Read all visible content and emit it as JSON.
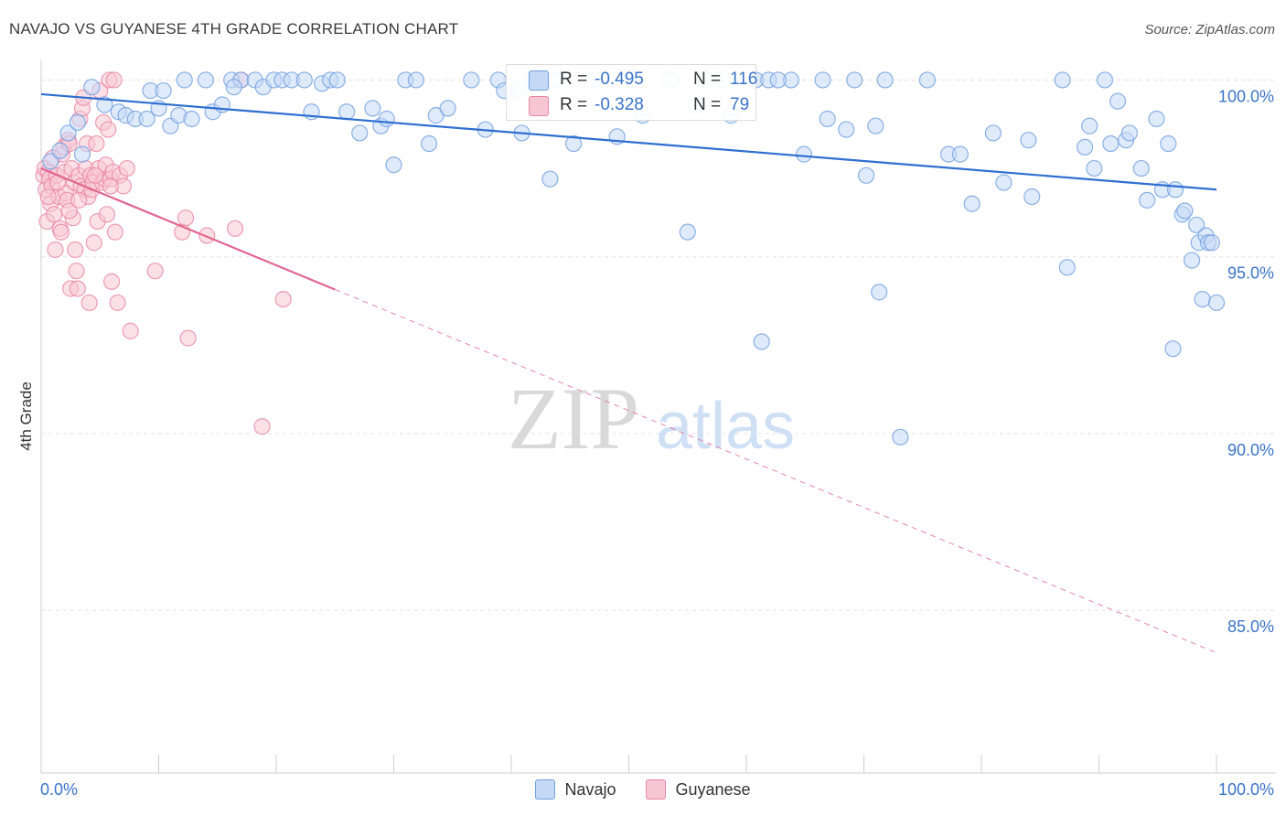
{
  "title": "NAVAJO VS GUYANESE 4TH GRADE CORRELATION CHART",
  "source": "Source: ZipAtlas.com",
  "watermark": {
    "zip": "ZIP",
    "atlas": "atlas"
  },
  "stats": {
    "navajo": {
      "r_label": "R =",
      "r_value": "-0.495",
      "n_label": "N =",
      "n_value": "116"
    },
    "guyanese": {
      "r_label": "R =",
      "r_value": "-0.328",
      "n_label": "N =",
      "n_value": "79"
    }
  },
  "colors": {
    "navajo": "#6f9fe0",
    "navajo_fill": "#c5d8f5",
    "navajo_line": "#2f6fd0",
    "guyanese": "#ea86a4",
    "guyanese_fill": "#f7c6d5",
    "guyanese_line": "#e0688f",
    "value_text": "#3b74c9",
    "grid": "#e3e3e3"
  },
  "chart_data": {
    "type": "scatter",
    "title": "NAVAJO VS GUYANESE 4TH GRADE CORRELATION CHART",
    "xlabel": "",
    "ylabel": "4th Grade",
    "xlim": [
      0,
      100
    ],
    "ylim": [
      80.4,
      100.4
    ],
    "x_tick_labels": [
      "0.0%",
      "100.0%"
    ],
    "y_ticks": [
      100,
      95,
      90,
      85
    ],
    "y_tick_labels": [
      "100.0%",
      "95.0%",
      "90.0%",
      "85.0%"
    ],
    "grid": true,
    "legend": "bottom-center",
    "series": [
      {
        "name": "Navajo",
        "trend": {
          "x": [
            0,
            100
          ],
          "y": [
            99.6,
            96.9
          ],
          "style": "solid"
        },
        "points": [
          [
            0.8,
            97.7
          ],
          [
            1.6,
            98.0
          ],
          [
            2.3,
            98.5
          ],
          [
            3.1,
            98.8
          ],
          [
            3.5,
            97.9
          ],
          [
            4.3,
            99.8
          ],
          [
            5.4,
            99.3
          ],
          [
            6.6,
            99.1
          ],
          [
            7.2,
            99.0
          ],
          [
            8.0,
            98.9
          ],
          [
            9.0,
            98.9
          ],
          [
            9.3,
            99.7
          ],
          [
            10.0,
            99.2
          ],
          [
            10.4,
            99.7
          ],
          [
            11.0,
            98.7
          ],
          [
            11.7,
            99.0
          ],
          [
            12.2,
            100.0
          ],
          [
            12.8,
            98.9
          ],
          [
            14.0,
            100.0
          ],
          [
            14.6,
            99.1
          ],
          [
            15.4,
            99.3
          ],
          [
            16.2,
            100.0
          ],
          [
            17.0,
            100.0
          ],
          [
            18.2,
            100.0
          ],
          [
            18.9,
            99.8
          ],
          [
            19.8,
            100.0
          ],
          [
            20.5,
            100.0
          ],
          [
            21.3,
            100.0
          ],
          [
            22.4,
            100.0
          ],
          [
            23.0,
            99.1
          ],
          [
            23.9,
            99.9
          ],
          [
            24.6,
            100.0
          ],
          [
            25.2,
            100.0
          ],
          [
            26.0,
            99.1
          ],
          [
            27.1,
            98.5
          ],
          [
            28.2,
            99.2
          ],
          [
            28.9,
            98.7
          ],
          [
            29.4,
            98.9
          ],
          [
            30.0,
            97.6
          ],
          [
            31.0,
            100.0
          ],
          [
            31.9,
            100.0
          ],
          [
            33.0,
            98.2
          ],
          [
            33.6,
            99.0
          ],
          [
            34.6,
            99.2
          ],
          [
            36.6,
            100.0
          ],
          [
            37.8,
            98.6
          ],
          [
            38.9,
            100.0
          ],
          [
            39.4,
            99.7
          ],
          [
            40.6,
            99.7
          ],
          [
            40.9,
            98.5
          ],
          [
            41.8,
            100.0
          ],
          [
            42.0,
            100.0
          ],
          [
            43.3,
            97.2
          ],
          [
            43.9,
            100.0
          ],
          [
            45.3,
            98.2
          ],
          [
            47.0,
            100.0
          ],
          [
            49.0,
            98.4
          ],
          [
            50.3,
            100.0
          ],
          [
            51.2,
            99.0
          ],
          [
            53.5,
            100.0
          ],
          [
            55.0,
            95.7
          ],
          [
            55.7,
            99.3
          ],
          [
            56.6,
            100.0
          ],
          [
            58.0,
            100.0
          ],
          [
            58.7,
            99.0
          ],
          [
            60.8,
            100.0
          ],
          [
            61.3,
            92.6
          ],
          [
            61.9,
            100.0
          ],
          [
            63.8,
            100.0
          ],
          [
            64.9,
            97.9
          ],
          [
            66.5,
            100.0
          ],
          [
            66.9,
            98.9
          ],
          [
            68.5,
            98.6
          ],
          [
            69.2,
            100.0
          ],
          [
            70.2,
            97.3
          ],
          [
            71.0,
            98.7
          ],
          [
            71.3,
            94.0
          ],
          [
            71.8,
            100.0
          ],
          [
            73.1,
            89.9
          ],
          [
            75.4,
            100.0
          ],
          [
            77.2,
            97.9
          ],
          [
            78.2,
            97.9
          ],
          [
            79.2,
            96.5
          ],
          [
            81.0,
            98.5
          ],
          [
            81.9,
            97.1
          ],
          [
            84.0,
            98.3
          ],
          [
            84.3,
            96.7
          ],
          [
            86.9,
            100.0
          ],
          [
            87.3,
            94.7
          ],
          [
            88.8,
            98.1
          ],
          [
            89.2,
            98.7
          ],
          [
            89.6,
            97.5
          ],
          [
            90.5,
            100.0
          ],
          [
            91.0,
            98.2
          ],
          [
            91.6,
            99.4
          ],
          [
            92.3,
            98.3
          ],
          [
            92.6,
            98.5
          ],
          [
            93.6,
            97.5
          ],
          [
            94.1,
            96.6
          ],
          [
            94.9,
            98.9
          ],
          [
            95.4,
            96.9
          ],
          [
            95.9,
            98.2
          ],
          [
            96.3,
            92.4
          ],
          [
            96.5,
            96.9
          ],
          [
            97.1,
            96.2
          ],
          [
            97.3,
            96.3
          ],
          [
            97.9,
            94.9
          ],
          [
            98.3,
            95.9
          ],
          [
            98.5,
            95.4
          ],
          [
            98.8,
            93.8
          ],
          [
            99.1,
            95.6
          ],
          [
            99.3,
            95.4
          ],
          [
            99.6,
            95.4
          ],
          [
            100.0,
            93.7
          ],
          [
            62.7,
            100.0
          ],
          [
            16.4,
            99.8
          ]
        ]
      },
      {
        "name": "Guyanese",
        "trend": {
          "x": [
            0,
            100
          ],
          "y": [
            97.5,
            83.8
          ],
          "solid_until": 25,
          "style": "solid-then-dashed"
        },
        "points": [
          [
            0.2,
            97.3
          ],
          [
            0.3,
            97.5
          ],
          [
            0.4,
            96.9
          ],
          [
            0.5,
            96.0
          ],
          [
            0.6,
            97.4
          ],
          [
            0.7,
            97.2
          ],
          [
            0.8,
            96.5
          ],
          [
            0.9,
            97.0
          ],
          [
            1.0,
            97.8
          ],
          [
            1.1,
            96.2
          ],
          [
            1.2,
            95.2
          ],
          [
            1.3,
            97.3
          ],
          [
            1.5,
            96.7
          ],
          [
            1.6,
            95.8
          ],
          [
            1.7,
            95.7
          ],
          [
            1.8,
            97.9
          ],
          [
            1.9,
            98.1
          ],
          [
            2.0,
            97.4
          ],
          [
            2.1,
            96.8
          ],
          [
            2.2,
            96.6
          ],
          [
            2.3,
            98.3
          ],
          [
            2.4,
            98.2
          ],
          [
            2.5,
            94.1
          ],
          [
            2.6,
            97.5
          ],
          [
            2.7,
            96.1
          ],
          [
            2.8,
            97.1
          ],
          [
            2.9,
            95.2
          ],
          [
            3.0,
            94.6
          ],
          [
            3.1,
            94.1
          ],
          [
            3.2,
            97.3
          ],
          [
            3.3,
            98.9
          ],
          [
            3.4,
            97.0
          ],
          [
            3.5,
            99.2
          ],
          [
            3.6,
            99.5
          ],
          [
            3.7,
            96.9
          ],
          [
            3.8,
            97.5
          ],
          [
            3.9,
            98.2
          ],
          [
            4.0,
            96.7
          ],
          [
            4.1,
            93.7
          ],
          [
            4.2,
            97.3
          ],
          [
            4.3,
            96.9
          ],
          [
            4.4,
            97.1
          ],
          [
            4.5,
            95.4
          ],
          [
            4.7,
            98.2
          ],
          [
            4.8,
            96.0
          ],
          [
            4.9,
            97.5
          ],
          [
            5.0,
            99.7
          ],
          [
            5.2,
            97.1
          ],
          [
            5.3,
            98.8
          ],
          [
            5.4,
            97.2
          ],
          [
            5.5,
            97.6
          ],
          [
            5.6,
            96.2
          ],
          [
            5.7,
            98.6
          ],
          [
            5.8,
            100.0
          ],
          [
            5.9,
            97.2
          ],
          [
            6.0,
            94.3
          ],
          [
            6.1,
            97.4
          ],
          [
            6.2,
            100.0
          ],
          [
            6.3,
            95.7
          ],
          [
            6.5,
            93.7
          ],
          [
            6.7,
            97.3
          ],
          [
            7.0,
            97.0
          ],
          [
            7.3,
            97.5
          ],
          [
            7.6,
            92.9
          ],
          [
            9.7,
            94.6
          ],
          [
            12.0,
            95.7
          ],
          [
            12.5,
            92.7
          ],
          [
            14.1,
            95.6
          ],
          [
            16.5,
            95.8
          ],
          [
            18.8,
            90.2
          ],
          [
            20.6,
            93.8
          ],
          [
            0.6,
            96.7
          ],
          [
            1.4,
            97.1
          ],
          [
            2.4,
            96.3
          ],
          [
            3.2,
            96.6
          ],
          [
            4.6,
            97.3
          ],
          [
            5.9,
            97.0
          ],
          [
            17.0,
            100.0
          ],
          [
            12.3,
            96.1
          ]
        ]
      }
    ]
  }
}
